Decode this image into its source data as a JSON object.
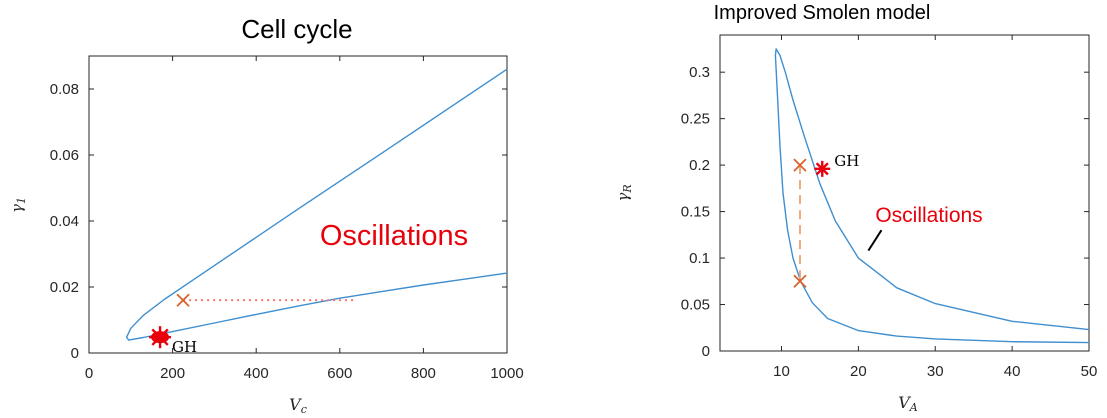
{
  "chart_data": [
    {
      "type": "line",
      "title": "Cell cycle",
      "xlabel": "V_c",
      "ylabel": "γ1",
      "xlim": [
        0,
        1000
      ],
      "ylim": [
        0,
        0.09
      ],
      "xticks": [
        0,
        200,
        400,
        600,
        800,
        1000
      ],
      "yticks": [
        0,
        0.02,
        0.04,
        0.06,
        0.08
      ],
      "xtick_labels": [
        "0",
        "200",
        "400",
        "600",
        "800",
        "1000"
      ],
      "ytick_labels": [
        "0",
        "0.02",
        "0.04",
        "0.06",
        "0.08"
      ],
      "grid": false,
      "series": [
        {
          "color": "#3f8fd0",
          "style": "solid",
          "x": [
            1000,
            700,
            500,
            350,
            250,
            180,
            130,
            100,
            90,
            95,
            130,
            200,
            300,
            400,
            500,
            600,
            700,
            800,
            900,
            1000
          ],
          "y": [
            0.086,
            0.0605,
            0.0436,
            0.0308,
            0.0222,
            0.0162,
            0.0114,
            0.0075,
            0.0048,
            0.0039,
            0.0047,
            0.0065,
            0.0091,
            0.0117,
            0.0142,
            0.0166,
            0.0186,
            0.0206,
            0.0224,
            0.0242
          ]
        },
        {
          "color": "#ff6b6b",
          "style": "dotted",
          "x": [
            225,
            640
          ],
          "y": [
            0.016,
            0.016
          ]
        }
      ],
      "markers": [
        {
          "kind": "cross",
          "x": 225,
          "y": 0.016,
          "color": "#d9632d"
        },
        {
          "kind": "star",
          "x": 170,
          "y": 0.0048,
          "color": "#e8000b",
          "label": "GH"
        }
      ],
      "annotations": [
        {
          "text": "Oscillations",
          "x": 550,
          "y": 0.039,
          "color": "#e8000b"
        }
      ]
    },
    {
      "type": "line",
      "title": "Improved Smolen model",
      "xlabel": "V_A",
      "ylabel": "γR",
      "xlim": [
        2,
        50
      ],
      "ylim": [
        0,
        0.34
      ],
      "xticks": [
        10,
        20,
        30,
        40,
        50
      ],
      "yticks": [
        0,
        0.05,
        0.1,
        0.15,
        0.2,
        0.25,
        0.3
      ],
      "xtick_labels": [
        "10",
        "20",
        "30",
        "40",
        "50"
      ],
      "ytick_labels": [
        "0",
        "0.05",
        "0.1",
        "0.15",
        "0.2",
        "0.25",
        "0.3"
      ],
      "grid": false,
      "series": [
        {
          "color": "#3f8fd0",
          "style": "solid",
          "x": [
            50,
            40,
            30,
            25,
            20,
            17,
            15,
            13,
            11.5,
            10.5,
            9.8,
            9.3,
            9.2,
            9.5,
            9.8,
            10.2,
            10.8,
            11.5,
            12.5,
            14,
            16,
            20,
            25,
            30,
            40,
            50
          ],
          "y": [
            0.023,
            0.032,
            0.051,
            0.068,
            0.1,
            0.14,
            0.18,
            0.23,
            0.27,
            0.3,
            0.318,
            0.325,
            0.318,
            0.27,
            0.22,
            0.17,
            0.13,
            0.1,
            0.075,
            0.052,
            0.035,
            0.022,
            0.016,
            0.013,
            0.01,
            0.009
          ]
        },
        {
          "color": "#f0a070",
          "style": "dashed",
          "x": [
            12.4,
            12.4
          ],
          "y": [
            0.2,
            0.075
          ]
        }
      ],
      "markers": [
        {
          "kind": "cross",
          "x": 12.4,
          "y": 0.2,
          "color": "#d9632d"
        },
        {
          "kind": "cross",
          "x": 12.4,
          "y": 0.075,
          "color": "#d9632d"
        },
        {
          "kind": "star",
          "x": 15.3,
          "y": 0.196,
          "color": "#e8000b",
          "label": "GH"
        }
      ],
      "annotations": [
        {
          "text": "Oscillations",
          "x": 26.5,
          "y": 0.17,
          "color": "#e8000b"
        }
      ],
      "arrow": {
        "from": [
          23,
          0.13
        ],
        "to": [
          21.3,
          0.108
        ]
      }
    }
  ]
}
